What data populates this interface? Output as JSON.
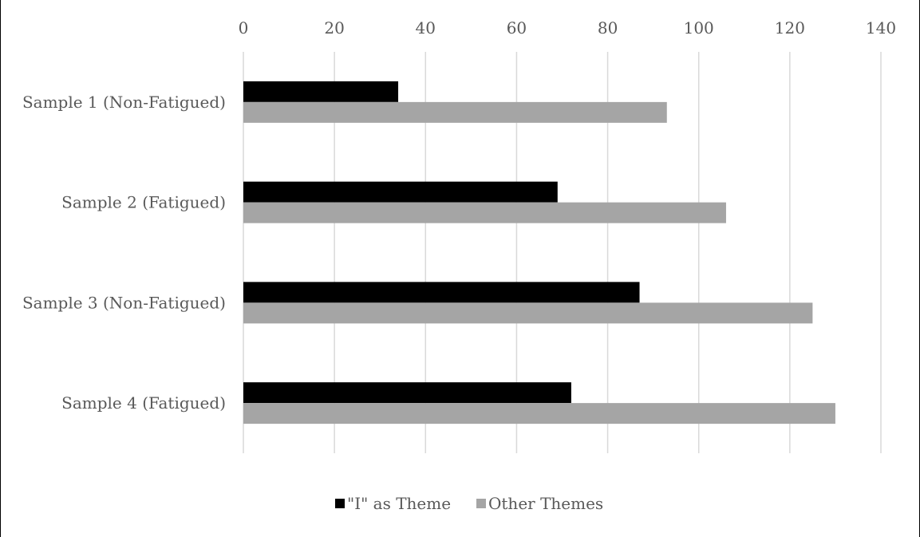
{
  "chart_data": {
    "type": "bar",
    "orientation": "horizontal",
    "categories": [
      "Sample 1 (Non-Fatigued)",
      "Sample 2 (Fatigued)",
      "Sample 3 (Non-Fatigued)",
      "Sample 4 (Fatigued)"
    ],
    "series": [
      {
        "name": "\"I\" as Theme",
        "values": [
          34,
          69,
          87,
          72
        ],
        "color": "#000000"
      },
      {
        "name": "Other Themes",
        "values": [
          93,
          106,
          125,
          130
        ],
        "color": "#a5a5a5"
      }
    ],
    "xlim": [
      0,
      140
    ],
    "xticks": [
      "0",
      "20",
      "40",
      "60",
      "80",
      "100",
      "120",
      "140"
    ],
    "xtick_values": [
      0,
      20,
      40,
      60,
      80,
      100,
      120,
      140
    ],
    "x_axis_position": "top",
    "grid": true,
    "legend": "bottom"
  }
}
